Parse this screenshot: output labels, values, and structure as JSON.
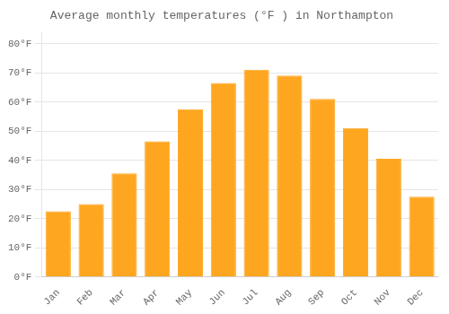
{
  "chart_data": {
    "type": "bar",
    "title": "Average monthly temperatures (°F ) in Northampton",
    "categories": [
      "Jan",
      "Feb",
      "Mar",
      "Apr",
      "May",
      "Jun",
      "Jul",
      "Aug",
      "Sep",
      "Oct",
      "Nov",
      "Dec"
    ],
    "values": [
      22.5,
      25.0,
      35.5,
      46.5,
      57.5,
      66.5,
      71.0,
      69.0,
      61.0,
      51.0,
      40.5,
      27.5
    ],
    "color": "#FFA620",
    "ylim": [
      0,
      84
    ],
    "yticks": [
      {
        "value": 0,
        "label": "0°F"
      },
      {
        "value": 10,
        "label": "10°F"
      },
      {
        "value": 20,
        "label": "20°F"
      },
      {
        "value": 30,
        "label": "30°F"
      },
      {
        "value": 40,
        "label": "40°F"
      },
      {
        "value": 50,
        "label": "50°F"
      },
      {
        "value": 60,
        "label": "60°F"
      },
      {
        "value": 70,
        "label": "70°F"
      },
      {
        "value": 80,
        "label": "80°F"
      }
    ],
    "grid": true
  }
}
